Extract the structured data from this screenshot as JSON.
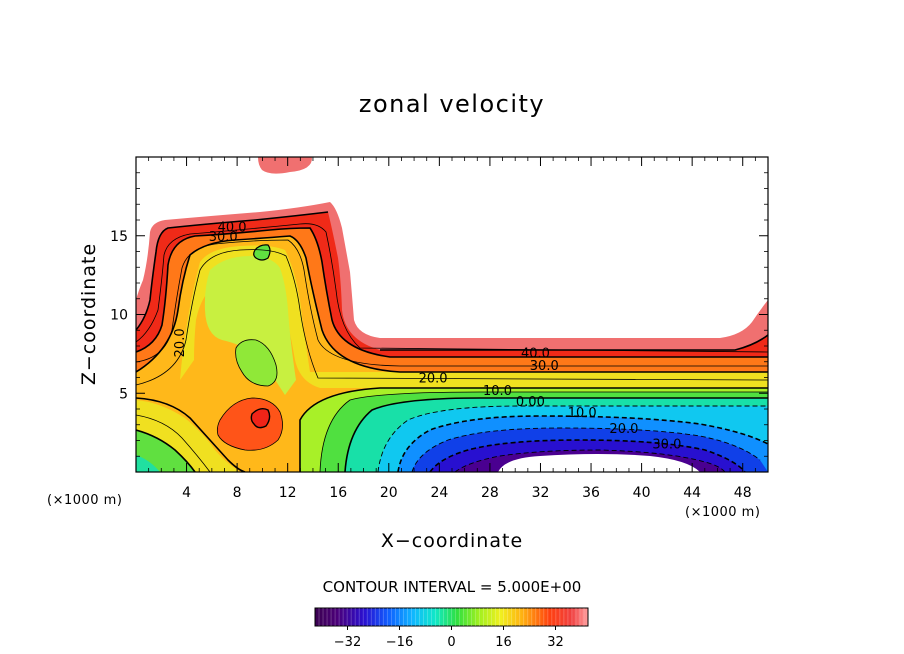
{
  "chart_data": {
    "type": "contour",
    "title": "zonal velocity",
    "xlabel": "X−coordinate",
    "ylabel": "Z−coordinate",
    "x_unit": "(×1000 m)",
    "z_unit": "(×1000 m)",
    "xlim": [
      0,
      50
    ],
    "ylim": [
      0,
      20
    ],
    "x_ticks": [
      "4",
      "8",
      "12",
      "16",
      "20",
      "24",
      "28",
      "32",
      "36",
      "40",
      "44",
      "48"
    ],
    "x_tick_values": [
      4,
      8,
      12,
      16,
      20,
      24,
      28,
      32,
      36,
      40,
      44,
      48
    ],
    "y_ticks": [
      "5",
      "10",
      "15"
    ],
    "y_tick_values": [
      5,
      10,
      15
    ],
    "contour_interval_text": "CONTOUR INTERVAL =  5.000E+00",
    "contour_interval": 5.0,
    "negative_contours": "dashed",
    "contour_labels": [
      {
        "text": "40.0",
        "x": 7.6,
        "z": 15.6
      },
      {
        "text": "30.0",
        "x": 6.9,
        "z": 15.0
      },
      {
        "text": "20.0",
        "x": 3.4,
        "z": 8.2
      },
      {
        "text": "40.0",
        "x": 31.6,
        "z": 7.6
      },
      {
        "text": "30.0",
        "x": 32.3,
        "z": 6.8
      },
      {
        "text": "20.0",
        "x": 23.5,
        "z": 6.0
      },
      {
        "text": "10.0",
        "x": 28.6,
        "z": 5.2
      },
      {
        "text": "0.00",
        "x": 31.2,
        "z": 4.5
      },
      {
        "text": "10.0",
        "x": 35.3,
        "z": 3.8
      },
      {
        "text": "20.0",
        "x": 38.6,
        "z": 2.8
      },
      {
        "text": "30.0",
        "x": 42.0,
        "z": 1.8
      }
    ],
    "colorbar": {
      "min": -42,
      "max": 42,
      "tick_labels": [
        "−32",
        "−16",
        "0",
        "16",
        "32"
      ],
      "tick_values": [
        -32,
        -16,
        0,
        16,
        32
      ]
    }
  }
}
